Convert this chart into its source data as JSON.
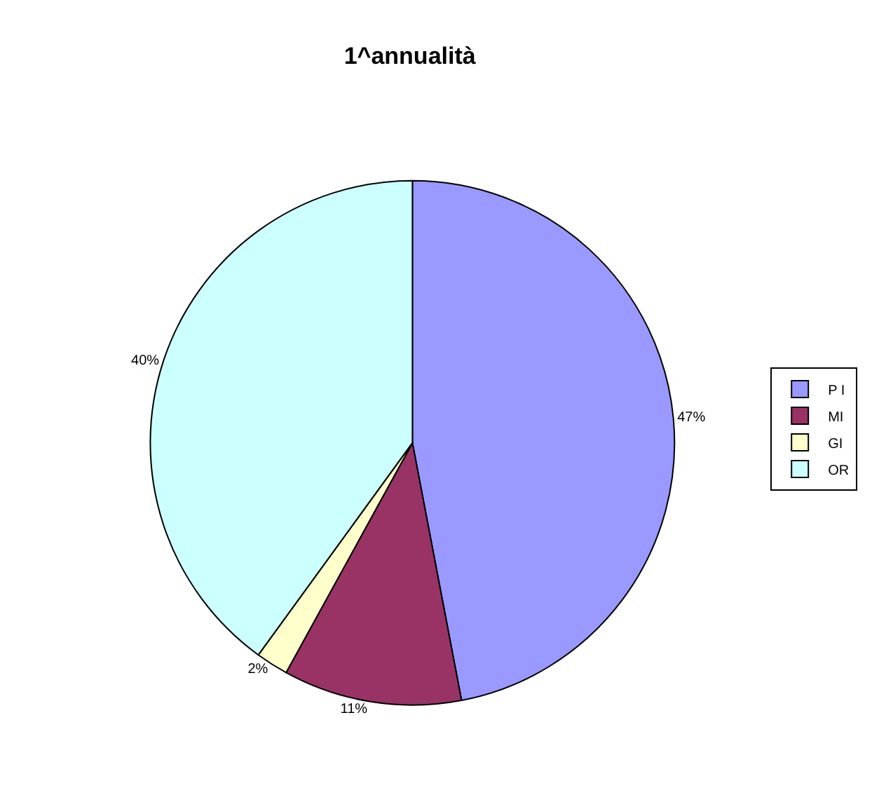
{
  "chart_data": {
    "type": "pie",
    "title": "1^annualità",
    "categories": [
      "P I",
      "MI",
      "GI",
      "OR"
    ],
    "values": [
      47,
      11,
      2,
      40
    ],
    "colors": [
      "#9999ff",
      "#993366",
      "#ffffcc",
      "#ccffff"
    ],
    "value_labels": [
      "47%",
      "11%",
      "2%",
      "40%"
    ],
    "legend": "right"
  }
}
